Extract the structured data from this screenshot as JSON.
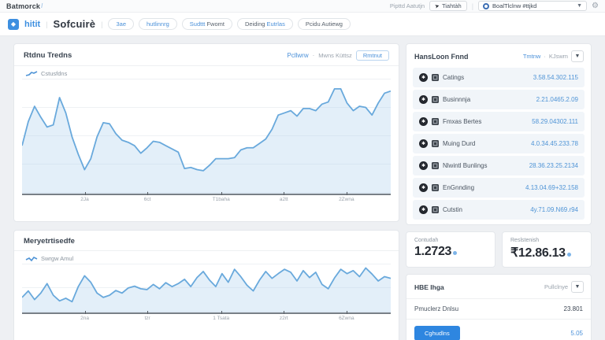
{
  "topbar": {
    "brand": "Batmorck",
    "brand_slash": "/",
    "right_label": "Pipttd Aatutjn",
    "send_button": "Tiahtàh",
    "account_dropdown": "BoalTlclnw #ttjkd"
  },
  "header": {
    "product_name": "hitit",
    "divider": "|",
    "product_suffix": "Sofcuirè",
    "tabs": [
      {
        "parts": [
          {
            "text": "3ae",
            "tone": "blue"
          }
        ]
      },
      {
        "parts": [
          {
            "text": "hutlinnrg",
            "tone": "blue"
          }
        ]
      },
      {
        "parts": [
          {
            "text": "Sudttt",
            "tone": "blue"
          },
          {
            "text": "Fwomt",
            "tone": "dark"
          }
        ]
      },
      {
        "parts": [
          {
            "text": "Deiding",
            "tone": "dark"
          },
          {
            "text": "Eutrlas",
            "tone": "blue"
          }
        ]
      },
      {
        "parts": [
          {
            "text": "Pcidu Autiewg",
            "tone": "dark"
          }
        ]
      }
    ]
  },
  "trend_card": {
    "title": "Rtdnu Tredns",
    "breadcrumb_primary": "Pcllwrw",
    "breadcrumb_sep": "·",
    "breadcrumb_secondary": "Mwns Küttsz",
    "action_button": "Rmtnut",
    "legend": "Cstusfdns"
  },
  "market_card": {
    "title": "Meryetrtisedfe",
    "legend": "Swrgw Amul"
  },
  "fund_panel": {
    "title": "HansLoon Fnnd",
    "subtitle_link": "Tmtnw",
    "subtitle_sep": "·",
    "subtitle_extra": "KJswm",
    "rows": [
      {
        "label": "Catings",
        "value": "3.58.54.302.115"
      },
      {
        "label": "Businnnja",
        "value": "2.21.0465.2.09"
      },
      {
        "label": "Fmxas Bertes",
        "value": "58.29.04302.111"
      },
      {
        "label": "Muing Durd",
        "value": "4.0.34.45.233.78"
      },
      {
        "label": "Nlwintl Bunlings",
        "value": "28.36.23.25.2134"
      },
      {
        "label": "EnGnnding",
        "value": "4.13.04.69+32.158"
      },
      {
        "label": "Cutstin",
        "value": "4y.71.09.N69.r94"
      }
    ]
  },
  "stats": [
    {
      "label": "Contudah",
      "value": "1.2723"
    },
    {
      "label": "Reslstenish",
      "value": "₹12.86.13"
    }
  ],
  "policy_panel": {
    "title": "HBE Ihga",
    "menu_label": "Pullclnye",
    "row_label": "Pmuclerz Dnlsu",
    "row_value": "23.801",
    "button_label": "Cghudlns",
    "button_value": "5.05"
  },
  "colors": {
    "accent_blue": "#3d8fe0",
    "chart_line": "#69a9dc",
    "chart_fill": "rgba(176,208,238,0.35)",
    "value_blue": "#4f94d6",
    "button_blue": "#2e86e0"
  },
  "chart_data": [
    {
      "type": "line",
      "title": "Rtdnu Tredns",
      "series": [
        {
          "name": "Cstusfdns",
          "values": [
            42,
            64,
            78,
            68,
            59,
            61,
            86,
            72,
            50,
            34,
            20,
            30,
            50,
            63,
            62,
            53,
            47,
            45,
            42,
            35,
            40,
            46,
            45,
            42,
            39,
            36,
            21,
            22,
            20,
            19,
            24,
            30,
            30,
            30,
            31,
            38,
            40,
            40,
            44,
            48,
            57,
            70,
            72,
            74,
            69,
            76,
            76,
            74,
            80,
            82,
            94,
            94,
            81,
            74,
            78,
            77,
            70,
            81,
            90,
            92
          ]
        }
      ],
      "ylim": [
        0,
        100
      ],
      "grid": true,
      "legend_position": "top-left",
      "x_tick_labels": [
        "2Ja",
        "6ct",
        "T1baha",
        "a2tt",
        "2Zwna"
      ],
      "x_tick_positions": [
        0.17,
        0.34,
        0.54,
        0.71,
        0.88
      ]
    },
    {
      "type": "line",
      "title": "Meryetrtisedfe",
      "series": [
        {
          "name": "Swrgw Amul",
          "values": [
            30,
            45,
            25,
            40,
            62,
            35,
            22,
            28,
            20,
            55,
            80,
            65,
            40,
            30,
            35,
            46,
            40,
            52,
            56,
            50,
            48,
            60,
            50,
            64,
            55,
            62,
            72,
            55,
            76,
            90,
            70,
            55,
            85,
            65,
            95,
            78,
            58,
            45,
            70,
            90,
            74,
            85,
            95,
            88,
            68,
            92,
            76,
            88,
            60,
            50,
            75,
            95,
            85,
            92,
            78,
            98,
            84,
            68,
            78,
            74
          ]
        }
      ],
      "ylim": [
        0,
        100
      ],
      "grid": true,
      "legend_position": "top-left",
      "x_tick_labels": [
        "2na",
        "tzr",
        "1 Tsata",
        "z2rt",
        "6Zwna"
      ],
      "x_tick_positions": [
        0.17,
        0.34,
        0.54,
        0.71,
        0.88
      ]
    }
  ]
}
